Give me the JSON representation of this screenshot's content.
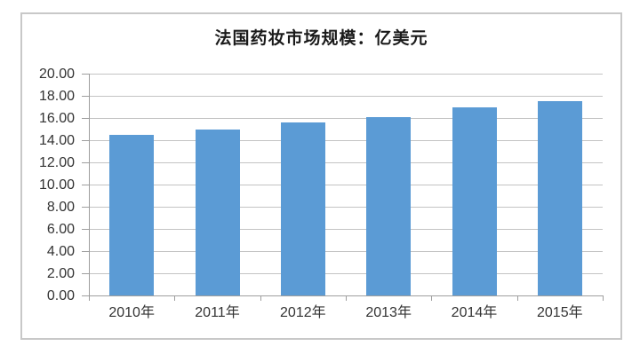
{
  "chart_data": {
    "type": "bar",
    "title": "法国药妆市场规模：亿美元",
    "categories": [
      "2010年",
      "2011年",
      "2012年",
      "2013年",
      "2014年",
      "2015年"
    ],
    "values": [
      14.5,
      15.0,
      15.6,
      16.1,
      17.0,
      17.5
    ],
    "xlabel": "",
    "ylabel": "",
    "ylim": [
      0,
      20
    ],
    "y_tick_step": 2,
    "y_tick_labels": [
      "0.00",
      "2.00",
      "4.00",
      "6.00",
      "8.00",
      "10.00",
      "12.00",
      "14.00",
      "16.00",
      "18.00",
      "20.00"
    ],
    "grid": true,
    "legend": false,
    "colors": {
      "bar": "#5B9BD5",
      "gridline": "#C3C3C3",
      "axis": "#9E9E9E",
      "title_text": "#1A1A1A",
      "tick_text": "#333333",
      "chart_border": "#C8C8C8",
      "background": "#FFFFFF"
    }
  }
}
